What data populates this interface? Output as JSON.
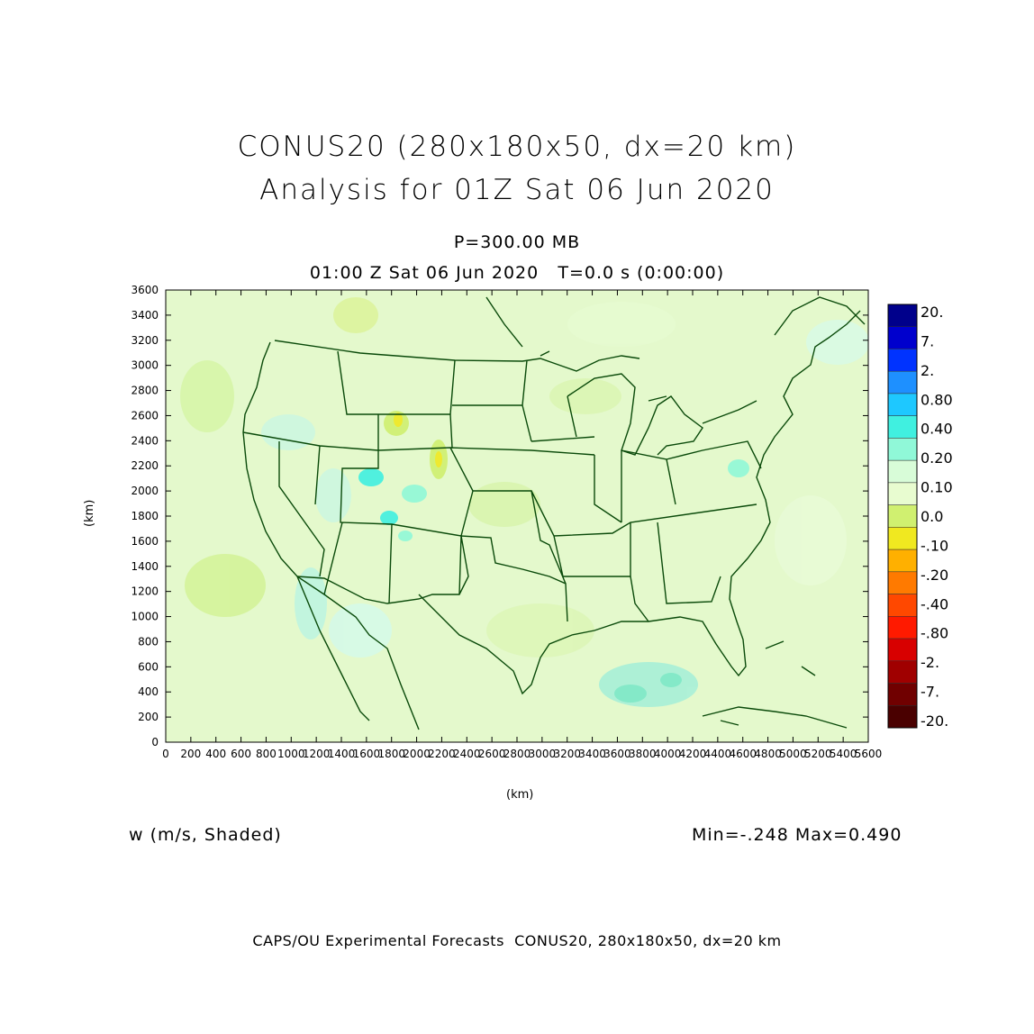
{
  "title": {
    "line1": "CONUS20 (280x180x50, dx=20 km)",
    "line2": "Analysis for 01Z Sat 06 Jun 2020"
  },
  "subtitle": {
    "level": "P=300.00 MB",
    "time": "01:00 Z Sat 06 Jun 2020   T=0.0 s (0:00:00)"
  },
  "field_label": "w (m/s, Shaded)",
  "min_max": "Min=-.248 Max=0.490",
  "footer": "CAPS/OU Experimental Forecasts  CONUS20, 280x180x50, dx=20 km",
  "axes": {
    "xlabel": "(km)",
    "ylabel": "(km)",
    "x_ticks": [
      "0",
      "200",
      "400",
      "600",
      "800",
      "1000",
      "1200",
      "1400",
      "1600",
      "1800",
      "2000",
      "2200",
      "2400",
      "2600",
      "2800",
      "3000",
      "3200",
      "3400",
      "3600",
      "3800",
      "4000",
      "4200",
      "4400",
      "4600",
      "4800",
      "5000",
      "5200",
      "5400",
      "5600"
    ],
    "y_ticks": [
      "0",
      "200",
      "400",
      "600",
      "800",
      "1000",
      "1200",
      "1400",
      "1600",
      "1800",
      "2000",
      "2200",
      "2400",
      "2600",
      "2800",
      "3000",
      "3200",
      "3400",
      "3600"
    ],
    "xlim": [
      0,
      5600
    ],
    "ylim": [
      0,
      3600
    ]
  },
  "colorbar": {
    "labels": [
      "20.",
      "7.",
      "2.",
      "0.80",
      "0.40",
      "0.20",
      "0.10",
      "0.0",
      "-.10",
      "-.20",
      "-.40",
      "-.80",
      "-2.",
      "-7.",
      "-20."
    ],
    "colors": [
      "#00008b",
      "#0000cd",
      "#0033ff",
      "#1e90ff",
      "#1ec8ff",
      "#40f0e0",
      "#90f8d8",
      "#d8fcd8",
      "#e8fcd0",
      "#d0f070",
      "#f0e820",
      "#ffb000",
      "#ff7a00",
      "#ff4800",
      "#ff1a00",
      "#d80000",
      "#a00000",
      "#700000",
      "#4a0000"
    ]
  },
  "map": {
    "background_color": "#e2f9c8",
    "border_color": "#0a4a0a",
    "features": [
      "coastline",
      "state-borders",
      "country-borders"
    ]
  }
}
